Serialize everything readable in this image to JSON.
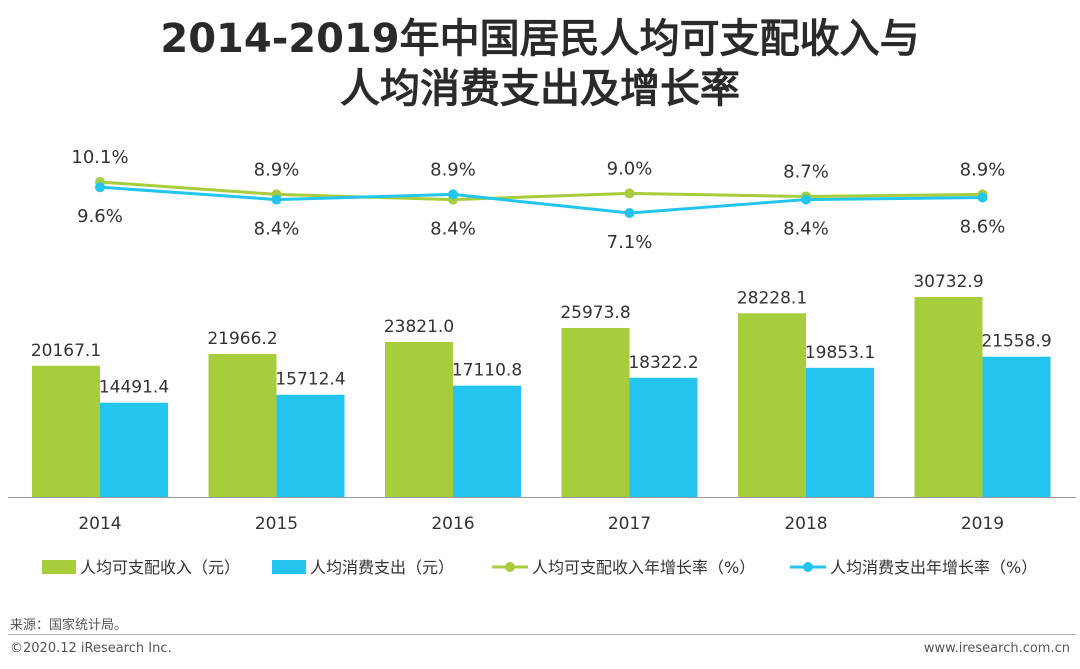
{
  "title_line1": "2014-2019年中国居民人均可支配收入与",
  "title_line2": "人均消费支出及增长率",
  "colors": {
    "green": "#a8cd3c",
    "blue": "#23c5ef",
    "axis": "#999999"
  },
  "chart_data": {
    "type": "bar",
    "title": "2014-2019年中国居民人均可支配收入与人均消费支出及增长率",
    "categories": [
      "2014",
      "2015",
      "2016",
      "2017",
      "2018",
      "2019"
    ],
    "series": [
      {
        "name": "人均可支配收入（元）",
        "values": [
          20167.1,
          21966.2,
          23821.0,
          25973.8,
          28228.1,
          30732.9
        ],
        "labels": [
          "20167.1",
          "21966.2",
          "23821.0",
          "25973.8",
          "28228.1",
          "30732.9"
        ]
      },
      {
        "name": "人均消费支出（元）",
        "values": [
          14491.4,
          15712.4,
          17110.8,
          18322.2,
          19853.1,
          21558.9
        ],
        "labels": [
          "14491.4",
          "15712.4",
          "17110.8",
          "18322.2",
          "19853.1",
          "21558.9"
        ]
      }
    ],
    "line_series": [
      {
        "name": "人均可支配收入年增长率（%）",
        "values": [
          10.1,
          8.9,
          8.4,
          9.0,
          8.7,
          8.9
        ],
        "labels": [
          "10.1%",
          "8.9%",
          "8.4%",
          "9.0%",
          "8.7%",
          "8.9%"
        ]
      },
      {
        "name": "人均消费支出年增长率（%）",
        "values": [
          9.6,
          8.4,
          8.9,
          7.1,
          8.4,
          8.6
        ],
        "labels": [
          "9.6%",
          "8.4%",
          "8.9%",
          "7.1%",
          "8.4%",
          "8.6%"
        ]
      }
    ],
    "bar_ylim": [
      0,
      32000
    ],
    "line_ylim": [
      7.1,
      10.1
    ],
    "legend_position": "bottom"
  },
  "source": "来源：国家统计局。",
  "copyright": "©2020.12 iResearch Inc.",
  "website": "www.iresearch.com.cn"
}
